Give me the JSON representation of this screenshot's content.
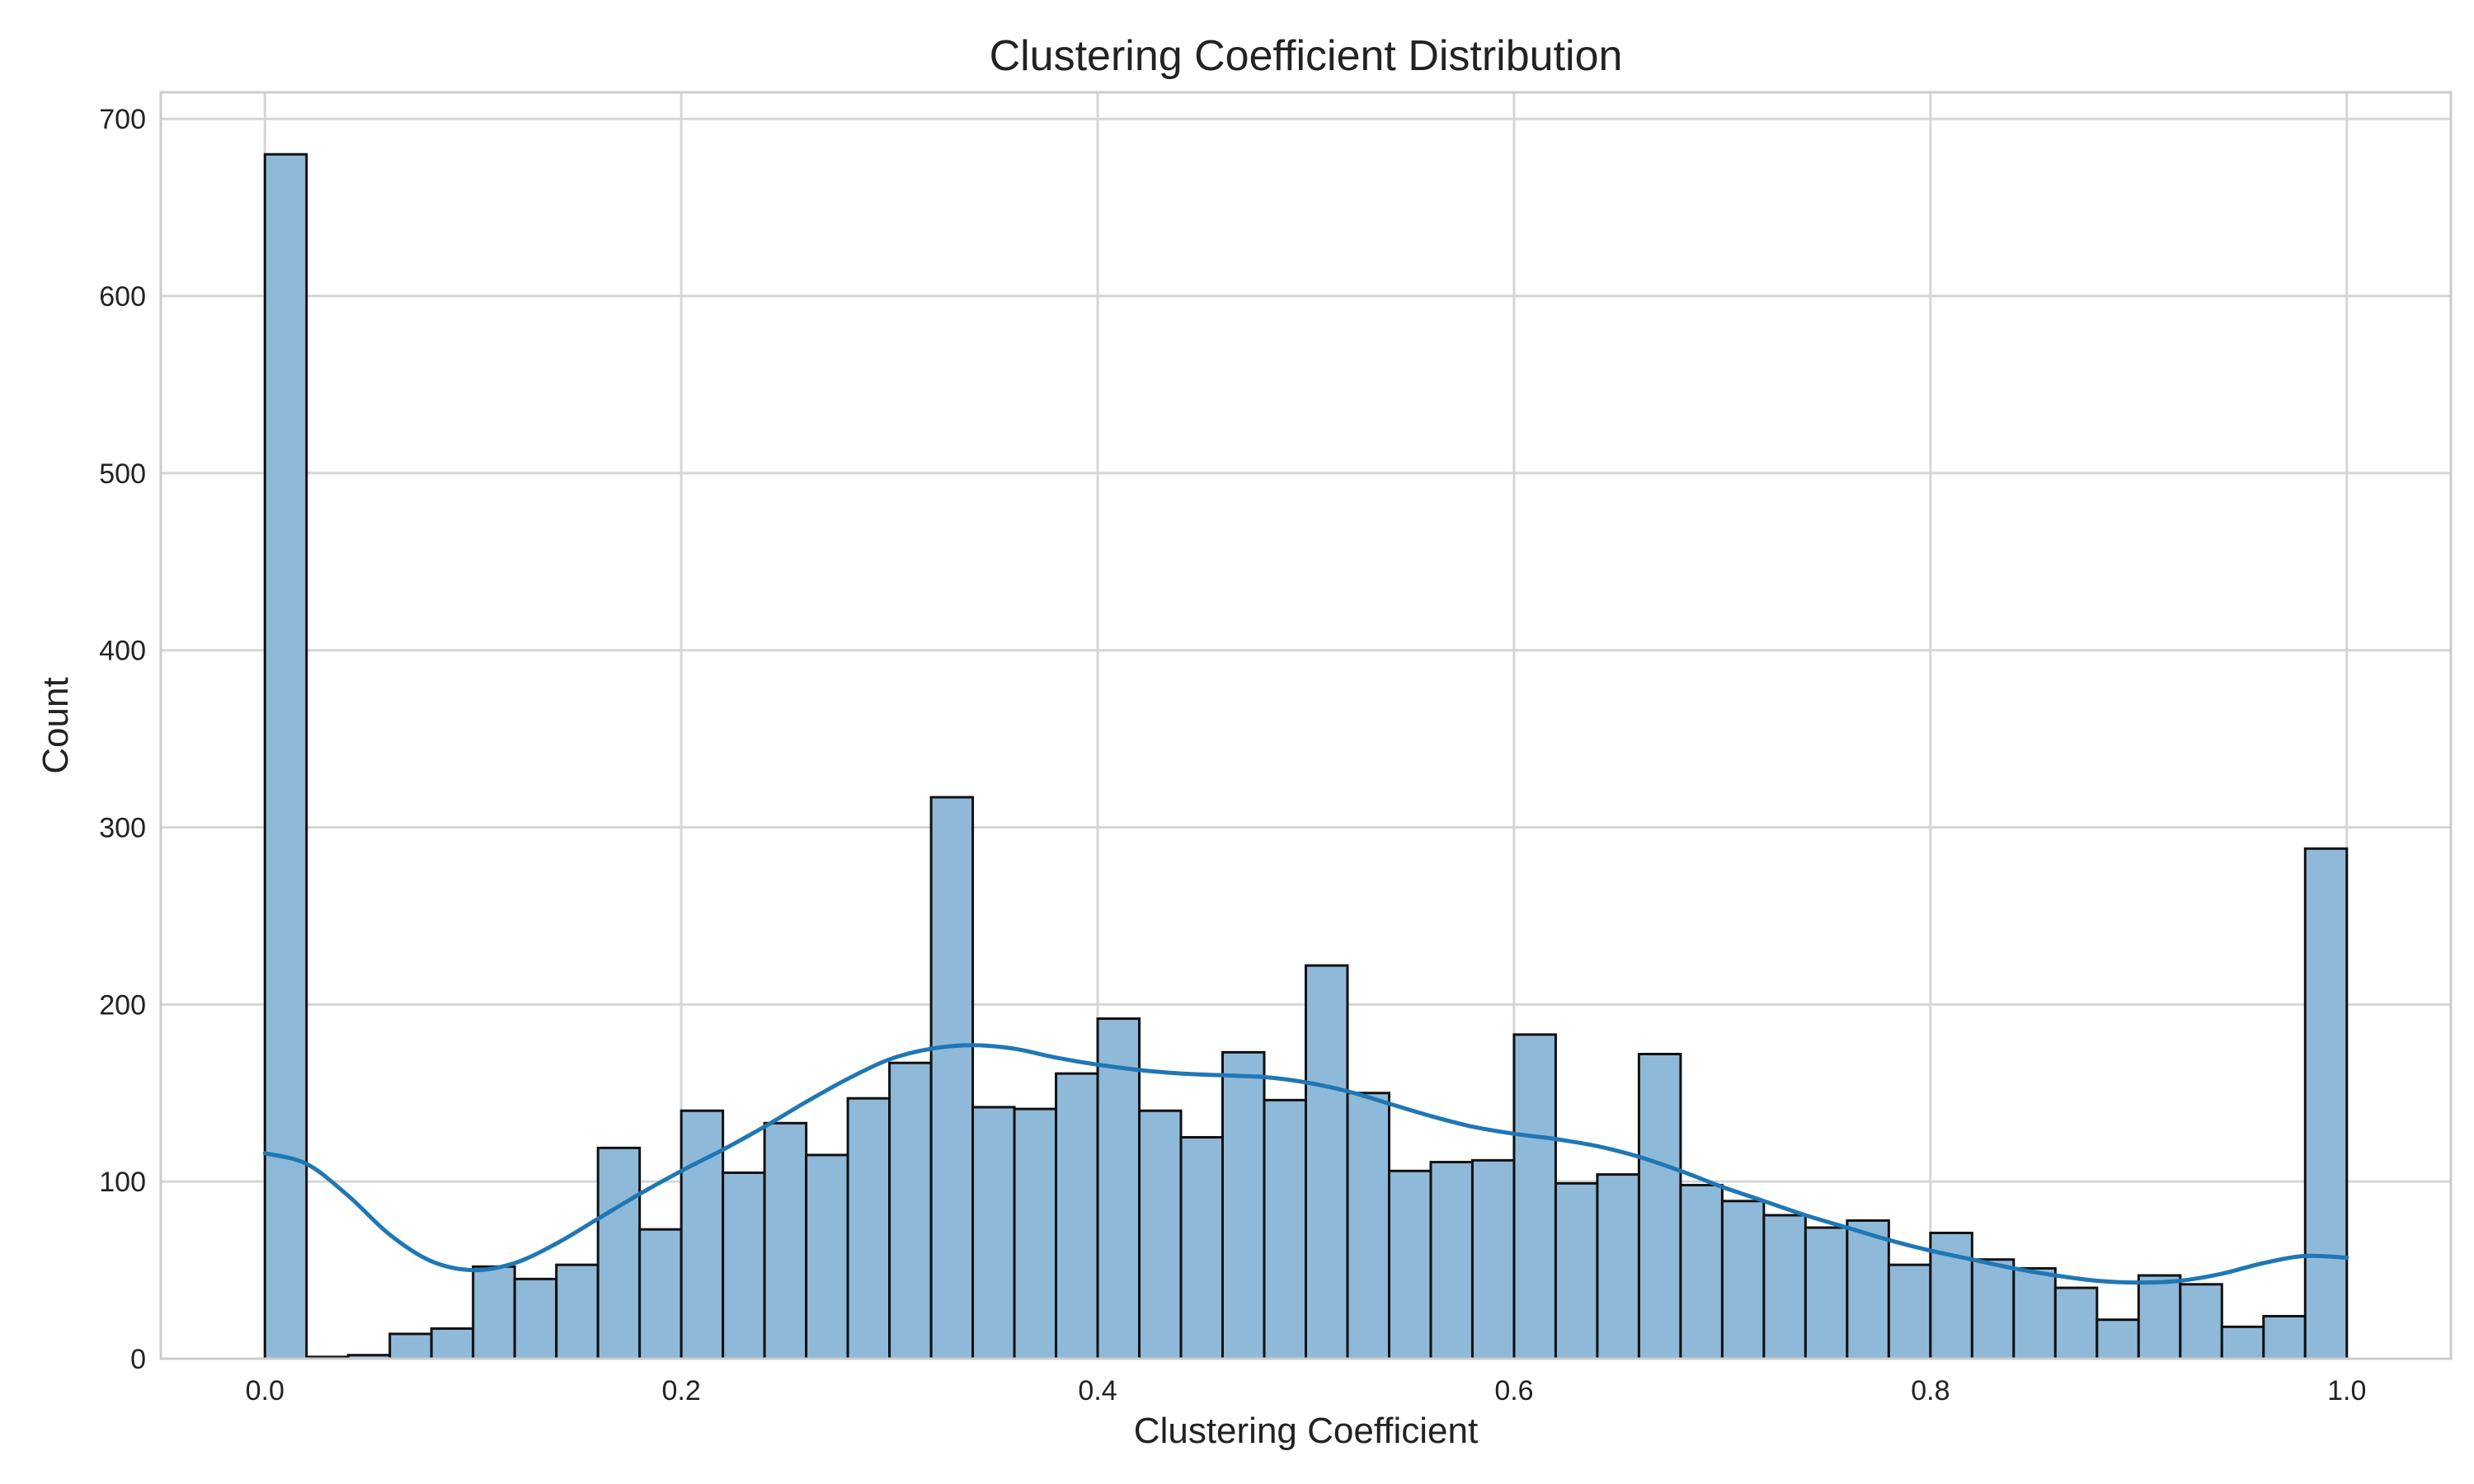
{
  "chart_data": {
    "type": "bar",
    "title": "Clustering Coefficient Distribution",
    "xlabel": "Clustering Coefficient",
    "ylabel": "Count",
    "xlim": [
      -0.05,
      1.05
    ],
    "ylim": [
      0,
      715
    ],
    "xticks": [
      0.0,
      0.2,
      0.4,
      0.6,
      0.8,
      1.0
    ],
    "xtick_labels": [
      "0.0",
      "0.2",
      "0.4",
      "0.6",
      "0.8",
      "1.0"
    ],
    "yticks": [
      0,
      100,
      200,
      300,
      400,
      500,
      600,
      700
    ],
    "ytick_labels": [
      "0",
      "100",
      "200",
      "300",
      "400",
      "500",
      "600",
      "700"
    ],
    "grid": true,
    "bin_range": [
      0.0,
      1.0
    ],
    "bins": 50,
    "values": [
      680,
      1,
      2,
      14,
      17,
      52,
      45,
      53,
      119,
      73,
      140,
      105,
      133,
      115,
      147,
      167,
      317,
      142,
      141,
      161,
      192,
      140,
      125,
      173,
      146,
      222,
      150,
      106,
      111,
      112,
      183,
      99,
      104,
      172,
      98,
      89,
      81,
      74,
      78,
      53,
      71,
      56,
      51,
      40,
      22,
      47,
      42,
      18,
      24,
      288
    ],
    "kde": {
      "x": [
        0.0,
        0.02,
        0.04,
        0.06,
        0.08,
        0.1,
        0.12,
        0.14,
        0.16,
        0.18,
        0.2,
        0.22,
        0.24,
        0.26,
        0.28,
        0.3,
        0.32,
        0.34,
        0.36,
        0.38,
        0.4,
        0.42,
        0.44,
        0.46,
        0.48,
        0.5,
        0.52,
        0.54,
        0.56,
        0.58,
        0.6,
        0.62,
        0.64,
        0.66,
        0.68,
        0.7,
        0.72,
        0.74,
        0.76,
        0.78,
        0.8,
        0.82,
        0.84,
        0.86,
        0.88,
        0.9,
        0.92,
        0.94,
        0.96,
        0.98,
        1.0
      ],
      "y": [
        116,
        110,
        92,
        70,
        55,
        50,
        54,
        65,
        79,
        93,
        106,
        118,
        131,
        145,
        158,
        169,
        175,
        177,
        175,
        170,
        166,
        163,
        161,
        160,
        159,
        156,
        151,
        144,
        137,
        131,
        127,
        124,
        120,
        114,
        106,
        97,
        89,
        81,
        74,
        67,
        61,
        56,
        51,
        47,
        44,
        43,
        44,
        48,
        54,
        58,
        57
      ]
    },
    "colors": {
      "bar_fill": "#8fb9d9",
      "bar_edge": "#111111",
      "kde_line": "#1f77b4",
      "grid": "#d6d6d6",
      "frame": "#cccccc"
    }
  }
}
